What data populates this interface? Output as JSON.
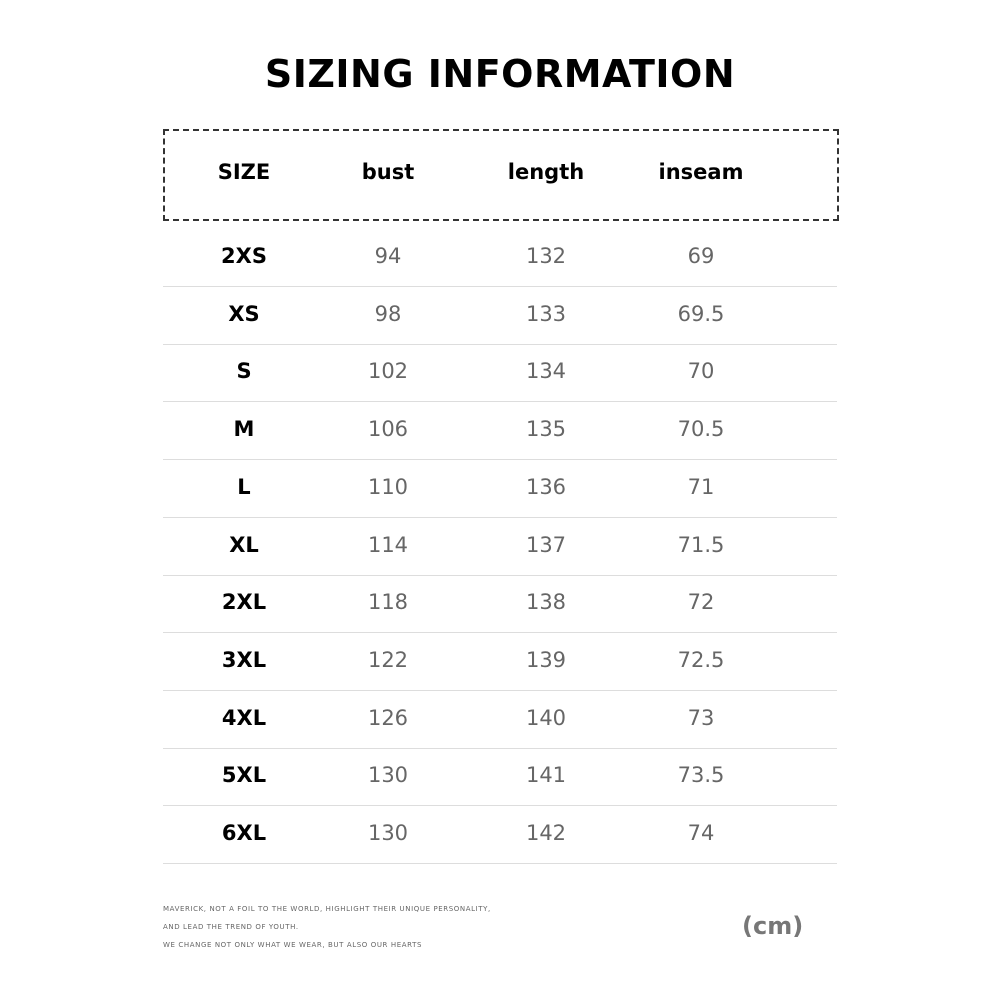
{
  "title": "SIZING INFORMATION",
  "headers": [
    "SIZE",
    "bust",
    "length",
    "inseam"
  ],
  "rows": [
    [
      "2XS",
      "94",
      "132",
      "69"
    ],
    [
      "XS",
      "98",
      "133",
      "69.5"
    ],
    [
      "S",
      "102",
      "134",
      "70"
    ],
    [
      "M",
      "106",
      "135",
      "70.5"
    ],
    [
      "L",
      "110",
      "136",
      "71"
    ],
    [
      "XL",
      "114",
      "137",
      "71.5"
    ],
    [
      "2XL",
      "118",
      "138",
      "72"
    ],
    [
      "3XL",
      "122",
      "139",
      "72.5"
    ],
    [
      "4XL",
      "126",
      "140",
      "73"
    ],
    [
      "5XL",
      "130",
      "141",
      "73.5"
    ],
    [
      "6XL",
      "130",
      "142",
      "74"
    ]
  ],
  "footer": [
    "MAVERICK, NOT A FOIL TO THE WORLD, HIGHLIGHT THEIR UNIQUE PERSONALITY,",
    "AND LEAD THE TREND OF YOUTH.",
    "WE CHANGE NOT ONLY WHAT WE WEAR, BUT ALSO OUR HEARTS"
  ],
  "unit": "(cm)"
}
